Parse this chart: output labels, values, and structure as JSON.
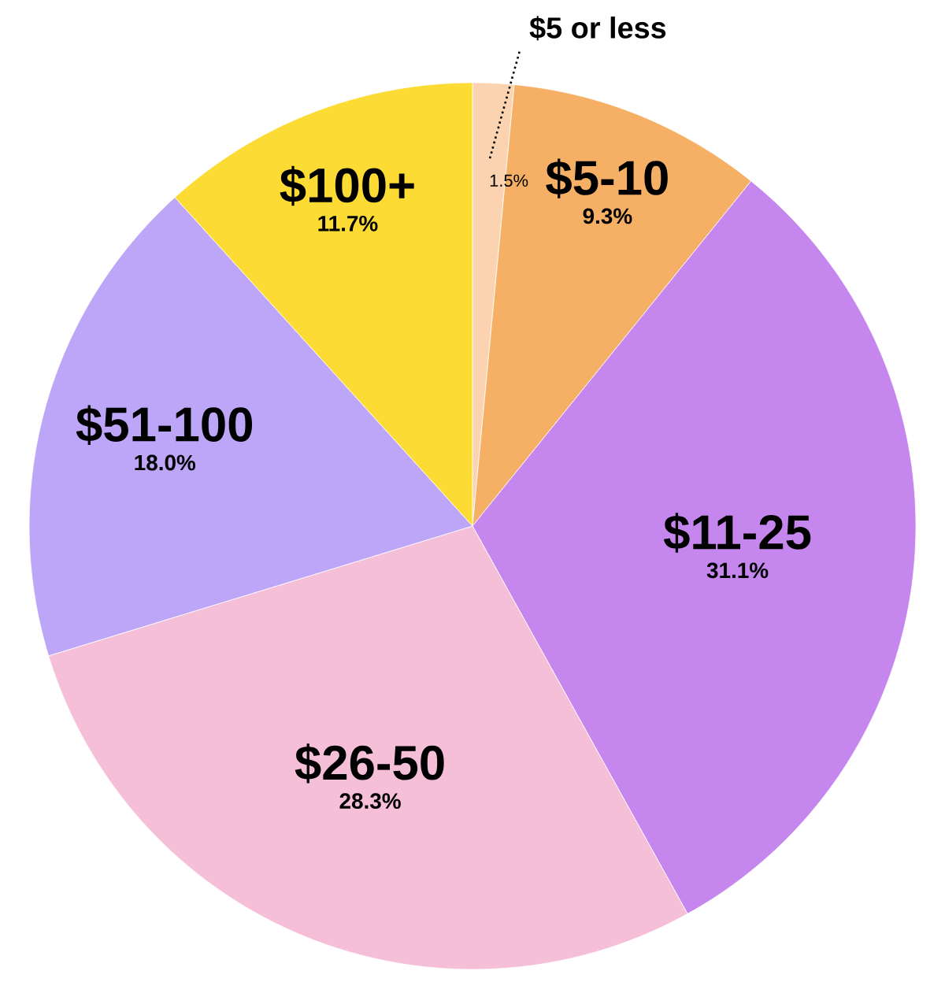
{
  "chart_data": {
    "type": "pie",
    "categories": [
      "$5 or less",
      "$5-10",
      "$11-25",
      "$26-50",
      "$51-100",
      "$100+"
    ],
    "values": [
      1.5,
      9.3,
      31.1,
      28.3,
      18.0,
      11.7
    ],
    "value_labels": [
      "1.5%",
      "9.3%",
      "31.1%",
      "28.3%",
      "18.0%",
      "11.7%"
    ],
    "colors": [
      "#fbd3b0",
      "#f6b066",
      "#c586ee",
      "#f5bfd8",
      "#bda5f8",
      "#fddb35"
    ]
  }
}
